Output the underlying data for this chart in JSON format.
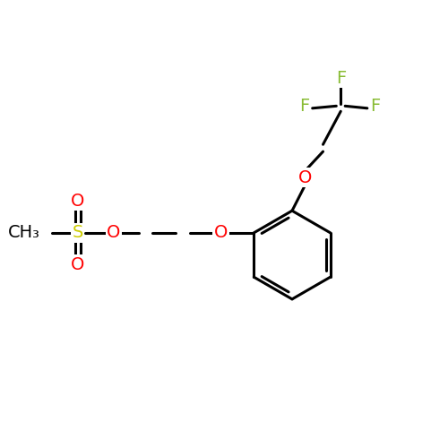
{
  "background_color": "#ffffff",
  "bond_color": "#000000",
  "bond_width": 2.2,
  "atom_colors": {
    "O": "#ff0000",
    "S": "#cccc00",
    "F": "#88bb33",
    "C": "#000000"
  },
  "font_size_atom": 14,
  "figure_size": [
    5.0,
    5.0
  ],
  "dpi": 100
}
